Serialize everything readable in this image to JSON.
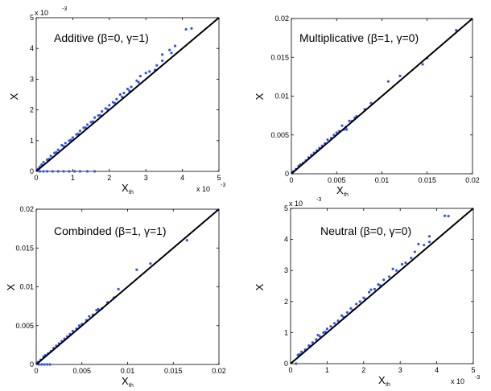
{
  "chart_data": [
    {
      "type": "scatter",
      "title": "Additive (β=0, γ=1)",
      "xlabel": "X",
      "xlabel_sub": "th",
      "ylabel": "X",
      "xlim": [
        0,
        5
      ],
      "ylim": [
        0,
        5
      ],
      "xticks": [
        "0",
        "1",
        "2",
        "3",
        "4",
        "5"
      ],
      "yticks": [
        "0",
        "1",
        "2",
        "3",
        "4",
        "5"
      ],
      "x_exponent_label": "x 10",
      "y_exponent_label": "x 10",
      "exponent": "-3",
      "reference_line": "y = x",
      "point_color": "#3355ee",
      "points": [
        [
          0.05,
          0.08
        ],
        [
          0.1,
          0.15
        ],
        [
          0.15,
          0.22
        ],
        [
          0.2,
          0.3
        ],
        [
          0.3,
          0.38
        ],
        [
          0.35,
          0.4
        ],
        [
          0.4,
          0.5
        ],
        [
          0.5,
          0.6
        ],
        [
          0.55,
          0.62
        ],
        [
          0.6,
          0.7
        ],
        [
          0.7,
          0.85
        ],
        [
          0.75,
          0.82
        ],
        [
          0.8,
          0.92
        ],
        [
          0.9,
          1.0
        ],
        [
          0.95,
          1.02
        ],
        [
          1.0,
          1.1
        ],
        [
          1.1,
          1.2
        ],
        [
          1.15,
          1.22
        ],
        [
          1.2,
          1.32
        ],
        [
          1.3,
          1.42
        ],
        [
          1.35,
          1.42
        ],
        [
          1.4,
          1.52
        ],
        [
          1.5,
          1.6
        ],
        [
          1.55,
          1.62
        ],
        [
          1.6,
          1.75
        ],
        [
          1.7,
          1.82
        ],
        [
          1.75,
          1.82
        ],
        [
          1.8,
          1.95
        ],
        [
          1.9,
          2.05
        ],
        [
          1.95,
          2.02
        ],
        [
          2.0,
          2.15
        ],
        [
          2.1,
          2.25
        ],
        [
          2.15,
          2.22
        ],
        [
          2.2,
          2.35
        ],
        [
          2.3,
          2.5
        ],
        [
          2.35,
          2.42
        ],
        [
          2.4,
          2.55
        ],
        [
          2.5,
          2.68
        ],
        [
          2.55,
          2.62
        ],
        [
          2.6,
          2.75
        ],
        [
          2.75,
          2.95
        ],
        [
          2.8,
          2.9
        ],
        [
          2.85,
          3.1
        ],
        [
          3.0,
          3.2
        ],
        [
          3.1,
          3.25
        ],
        [
          3.25,
          3.3
        ],
        [
          3.3,
          3.45
        ],
        [
          3.45,
          3.6
        ],
        [
          3.45,
          3.8
        ],
        [
          3.65,
          3.95
        ],
        [
          3.7,
          3.85
        ],
        [
          3.8,
          4.08
        ],
        [
          4.1,
          4.62
        ],
        [
          4.25,
          4.65
        ],
        [
          0.1,
          0
        ],
        [
          0.2,
          0
        ],
        [
          0.3,
          0
        ],
        [
          0.45,
          0
        ],
        [
          0.6,
          0
        ],
        [
          0.75,
          0
        ],
        [
          0.9,
          0
        ],
        [
          1.05,
          0
        ],
        [
          1.2,
          0
        ],
        [
          1.4,
          0
        ],
        [
          1.6,
          0
        ]
      ]
    },
    {
      "type": "scatter",
      "title": "Multiplicative (β=1, γ=0)",
      "xlabel": "X",
      "xlabel_sub": "th",
      "ylabel": "X",
      "xlim": [
        0,
        0.02
      ],
      "ylim": [
        0,
        0.02
      ],
      "xticks": [
        "0",
        "0.005",
        "0.01",
        "0.015",
        "0.02"
      ],
      "yticks": [
        "0",
        "0.005",
        "0.01",
        "0.015",
        "0.02"
      ],
      "reference_line": "y = x",
      "point_color": "#3355ee",
      "points": [
        [
          0.0002,
          0.0003
        ],
        [
          0.0005,
          0.0006
        ],
        [
          0.0008,
          0.001
        ],
        [
          0.001,
          0.0012
        ],
        [
          0.0013,
          0.0014
        ],
        [
          0.0016,
          0.0017
        ],
        [
          0.0019,
          0.0021
        ],
        [
          0.0022,
          0.0024
        ],
        [
          0.0025,
          0.0027
        ],
        [
          0.0028,
          0.003
        ],
        [
          0.0031,
          0.0033
        ],
        [
          0.0034,
          0.0036
        ],
        [
          0.0037,
          0.0039
        ],
        [
          0.004,
          0.0044
        ],
        [
          0.0044,
          0.0046
        ],
        [
          0.0047,
          0.005
        ],
        [
          0.005,
          0.0053
        ],
        [
          0.0053,
          0.0055
        ],
        [
          0.0056,
          0.0062
        ],
        [
          0.0058,
          0.0057
        ],
        [
          0.006,
          0.006
        ],
        [
          0.0061,
          0.0057
        ],
        [
          0.0064,
          0.0068
        ],
        [
          0.0067,
          0.0068
        ],
        [
          0.007,
          0.0072
        ],
        [
          0.0072,
          0.0074
        ],
        [
          0.0081,
          0.0083
        ],
        [
          0.0088,
          0.0091
        ],
        [
          0.0107,
          0.0119
        ],
        [
          0.012,
          0.0126
        ],
        [
          0.0145,
          0.0141
        ],
        [
          0.015,
          0.0149
        ],
        [
          0.0182,
          0.0185
        ]
      ]
    },
    {
      "type": "scatter",
      "title": "Combinded (β=1, γ=1)",
      "xlabel": "X",
      "xlabel_sub": "th",
      "ylabel": "X",
      "xlim": [
        0,
        0.02
      ],
      "ylim": [
        0,
        0.02
      ],
      "xticks": [
        "0",
        "0.005",
        "0.01",
        "0.015",
        "0.02"
      ],
      "yticks": [
        "0",
        "0.005",
        "0.01",
        "0.015",
        "0.02"
      ],
      "reference_line": "y = x",
      "point_color": "#3355ee",
      "points": [
        [
          0.0002,
          0.0003
        ],
        [
          0.0005,
          0.0006
        ],
        [
          0.0008,
          0.001
        ],
        [
          0.001,
          0.0012
        ],
        [
          0.0013,
          0.0014
        ],
        [
          0.0016,
          0.0017
        ],
        [
          0.0019,
          0.0021
        ],
        [
          0.0022,
          0.0024
        ],
        [
          0.0025,
          0.0027
        ],
        [
          0.0028,
          0.003
        ],
        [
          0.0031,
          0.0033
        ],
        [
          0.0034,
          0.0036
        ],
        [
          0.0037,
          0.0039
        ],
        [
          0.004,
          0.0043
        ],
        [
          0.0044,
          0.0046
        ],
        [
          0.0047,
          0.005
        ],
        [
          0.005,
          0.0052
        ],
        [
          0.0055,
          0.0057
        ],
        [
          0.0058,
          0.0062
        ],
        [
          0.0062,
          0.0064
        ],
        [
          0.0066,
          0.007
        ],
        [
          0.0068,
          0.0071
        ],
        [
          0.0072,
          0.0072
        ],
        [
          0.0078,
          0.008
        ],
        [
          0.0085,
          0.0086
        ],
        [
          0.009,
          0.0097
        ],
        [
          0.011,
          0.0122
        ],
        [
          0.0125,
          0.013
        ],
        [
          0.0165,
          0.016
        ],
        [
          0.0198,
          0.0199
        ],
        [
          0.0003,
          0
        ],
        [
          0.0006,
          0
        ],
        [
          0.0009,
          0
        ],
        [
          0.0012,
          0
        ],
        [
          0.0015,
          0
        ]
      ]
    },
    {
      "type": "scatter",
      "title": "Neutral (β=0, γ=0)",
      "xlabel": "X",
      "xlabel_sub": "th",
      "ylabel": "X",
      "xlim": [
        0,
        5
      ],
      "ylim": [
        0,
        5
      ],
      "xticks": [
        "0",
        "1",
        "2",
        "3",
        "4",
        "5"
      ],
      "yticks": [
        "0",
        "1",
        "2",
        "3",
        "4",
        "5"
      ],
      "x_exponent_label": "x 10",
      "y_exponent_label": "x 10",
      "exponent": "-3",
      "reference_line": "y = x",
      "point_color": "#3355ee",
      "points": [
        [
          0.15,
          0.0
        ],
        [
          0.2,
          0.28
        ],
        [
          0.25,
          0.3
        ],
        [
          0.3,
          0.38
        ],
        [
          0.4,
          0.45
        ],
        [
          0.5,
          0.58
        ],
        [
          0.55,
          0.57
        ],
        [
          0.6,
          0.68
        ],
        [
          0.7,
          0.78
        ],
        [
          0.75,
          0.92
        ],
        [
          0.8,
          0.88
        ],
        [
          0.9,
          1.0
        ],
        [
          0.95,
          1.02
        ],
        [
          1.0,
          1.12
        ],
        [
          1.1,
          1.2
        ],
        [
          1.2,
          1.3
        ],
        [
          1.3,
          1.38
        ],
        [
          1.4,
          1.55
        ],
        [
          1.45,
          1.5
        ],
        [
          1.55,
          1.65
        ],
        [
          1.65,
          1.78
        ],
        [
          1.7,
          1.72
        ],
        [
          1.8,
          1.92
        ],
        [
          1.9,
          2.0
        ],
        [
          2.0,
          2.12
        ],
        [
          2.05,
          2.08
        ],
        [
          2.15,
          2.3
        ],
        [
          2.2,
          2.38
        ],
        [
          2.3,
          2.4
        ],
        [
          2.4,
          2.55
        ],
        [
          2.45,
          2.52
        ],
        [
          2.55,
          2.7
        ],
        [
          2.7,
          2.8
        ],
        [
          2.8,
          3.05
        ],
        [
          2.9,
          3.0
        ],
        [
          3.05,
          3.2
        ],
        [
          3.15,
          3.25
        ],
        [
          3.3,
          3.4
        ],
        [
          3.4,
          3.6
        ],
        [
          3.5,
          3.85
        ],
        [
          3.65,
          3.82
        ],
        [
          3.8,
          3.92
        ],
        [
          3.8,
          4.1
        ],
        [
          4.22,
          4.76
        ],
        [
          4.32,
          4.75
        ]
      ]
    }
  ]
}
